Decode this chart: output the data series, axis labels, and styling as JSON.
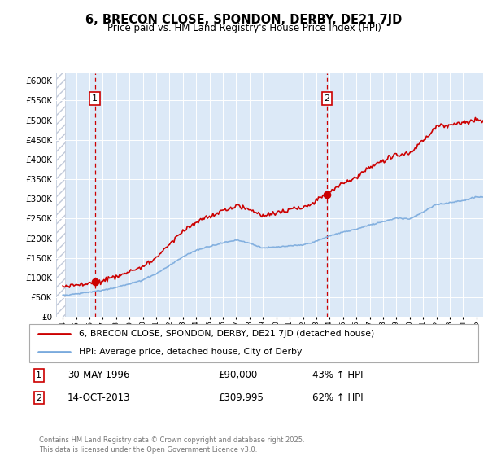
{
  "title": "6, BRECON CLOSE, SPONDON, DERBY, DE21 7JD",
  "subtitle": "Price paid vs. HM Land Registry's House Price Index (HPI)",
  "property_color": "#cc0000",
  "hpi_color": "#7aaadd",
  "background_color": "#dce9f7",
  "sale1_year": 1996.41,
  "sale1_price": 90000,
  "sale2_year": 2013.79,
  "sale2_price": 309995,
  "legend_property": "6, BRECON CLOSE, SPONDON, DERBY, DE21 7JD (detached house)",
  "legend_hpi": "HPI: Average price, detached house, City of Derby",
  "footer": "Contains HM Land Registry data © Crown copyright and database right 2025.\nThis data is licensed under the Open Government Licence v3.0.",
  "xlim": [
    1993.5,
    2025.5
  ],
  "ylim": [
    0,
    620000
  ],
  "yticks": [
    0,
    50000,
    100000,
    150000,
    200000,
    250000,
    300000,
    350000,
    400000,
    450000,
    500000,
    550000,
    600000
  ],
  "xticks": [
    1994,
    1995,
    1996,
    1997,
    1998,
    1999,
    2000,
    2001,
    2002,
    2003,
    2004,
    2005,
    2006,
    2007,
    2008,
    2009,
    2010,
    2011,
    2012,
    2013,
    2014,
    2015,
    2016,
    2017,
    2018,
    2019,
    2020,
    2021,
    2022,
    2023,
    2024,
    2025
  ]
}
